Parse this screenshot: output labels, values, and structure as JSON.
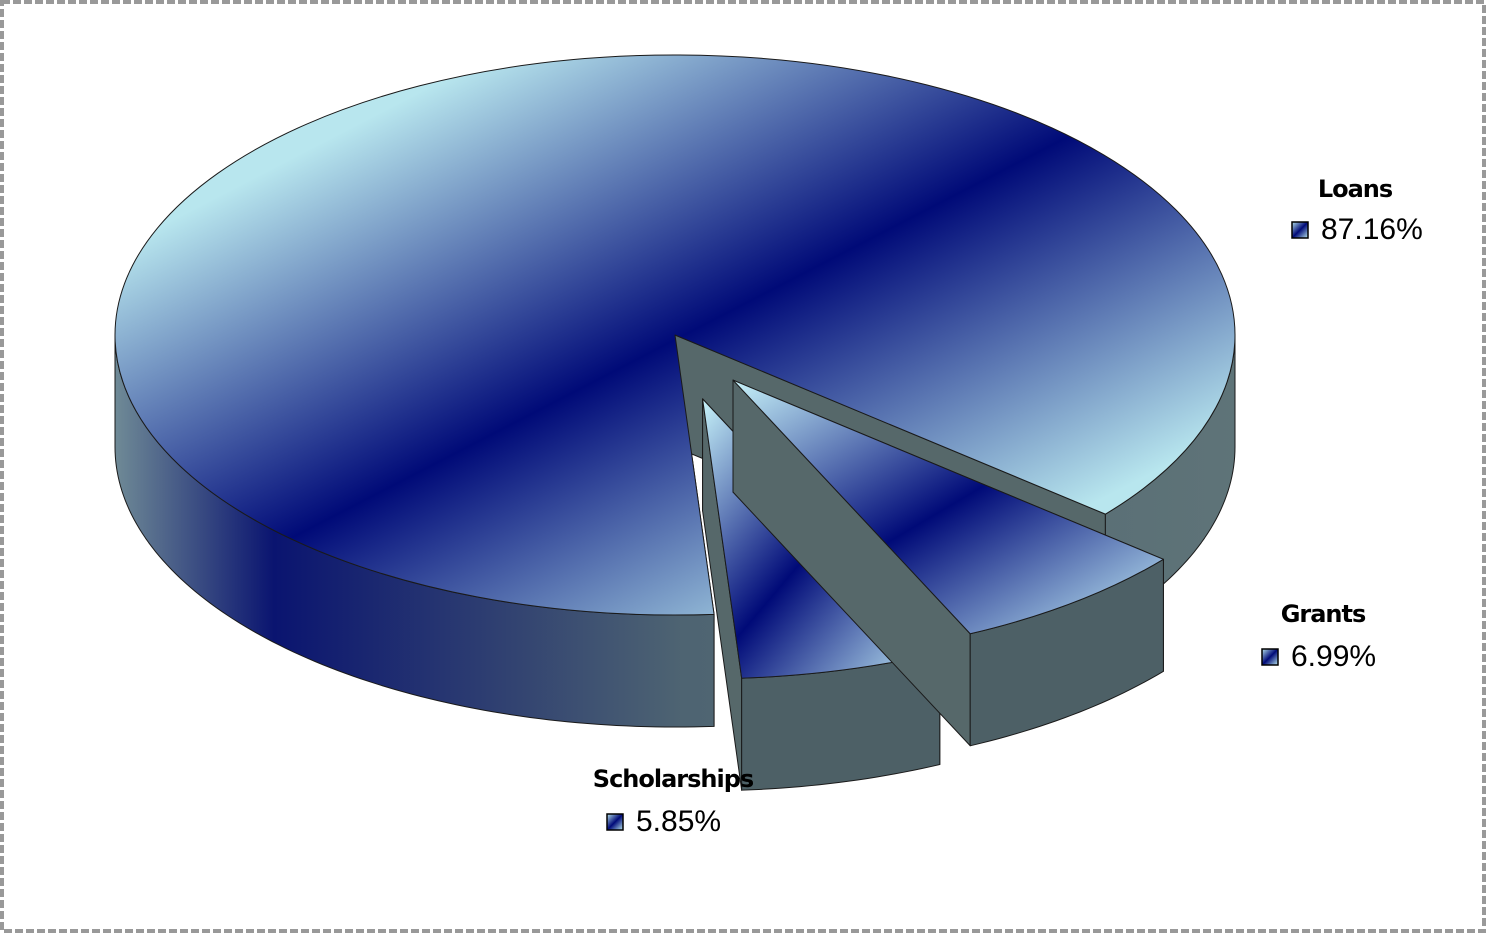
{
  "chart_data": {
    "type": "pie3d",
    "categories": [
      "Loans",
      "Grants",
      "Scholarships"
    ],
    "values": [
      87.16,
      6.99,
      5.85
    ],
    "value_labels": [
      "87.16%",
      "6.99%",
      "5.85%"
    ]
  }
}
